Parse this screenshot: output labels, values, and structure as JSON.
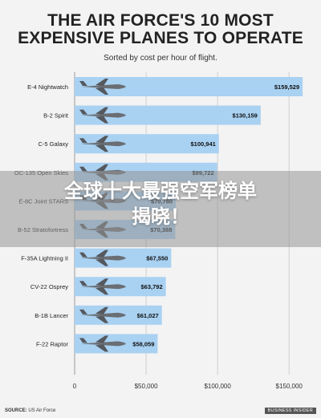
{
  "chart_data": {
    "type": "bar",
    "orientation": "horizontal",
    "title_line1": "THE AIR FORCE'S 10 MOST",
    "title_line2": "EXPENSIVE PLANES TO OPERATE",
    "subtitle": "Sorted by cost per hour of flight.",
    "categories": [
      "E-4 Nightwatch",
      "B-2 Spirit",
      "C-5 Galaxy",
      "OC-135 Open Skies",
      "E-8C Joint STARS",
      "B-52 Stratofortress",
      "F-35A Lightning II",
      "CV-22 Osprey",
      "B-1B Lancer",
      "F-22 Raptor"
    ],
    "values": [
      159529,
      130159,
      100941,
      99722,
      70780,
      70388,
      67550,
      63792,
      61027,
      58059
    ],
    "value_labels": [
      "$159,529",
      "$130,159",
      "$100,941",
      "$99,722",
      "$70,780",
      "$70,388",
      "$67,550",
      "$63,792",
      "$61,027",
      "$58,059"
    ],
    "xlim": [
      0,
      160000
    ],
    "x_ticks": [
      0,
      50000,
      100000,
      150000
    ],
    "x_tick_labels": [
      "0",
      "$50,000",
      "$100,000",
      "$150,000"
    ],
    "grid": true,
    "bar_color": "#a9d1f2",
    "gridline_color": "#cfcfcf"
  },
  "banner": {
    "line1": "全球十大最强空军榜单",
    "line2": "揭晓！"
  },
  "footer": {
    "source_label": "SOURCE:",
    "source_text": "US Air Force",
    "logo": "BUSINESS INSIDER"
  }
}
